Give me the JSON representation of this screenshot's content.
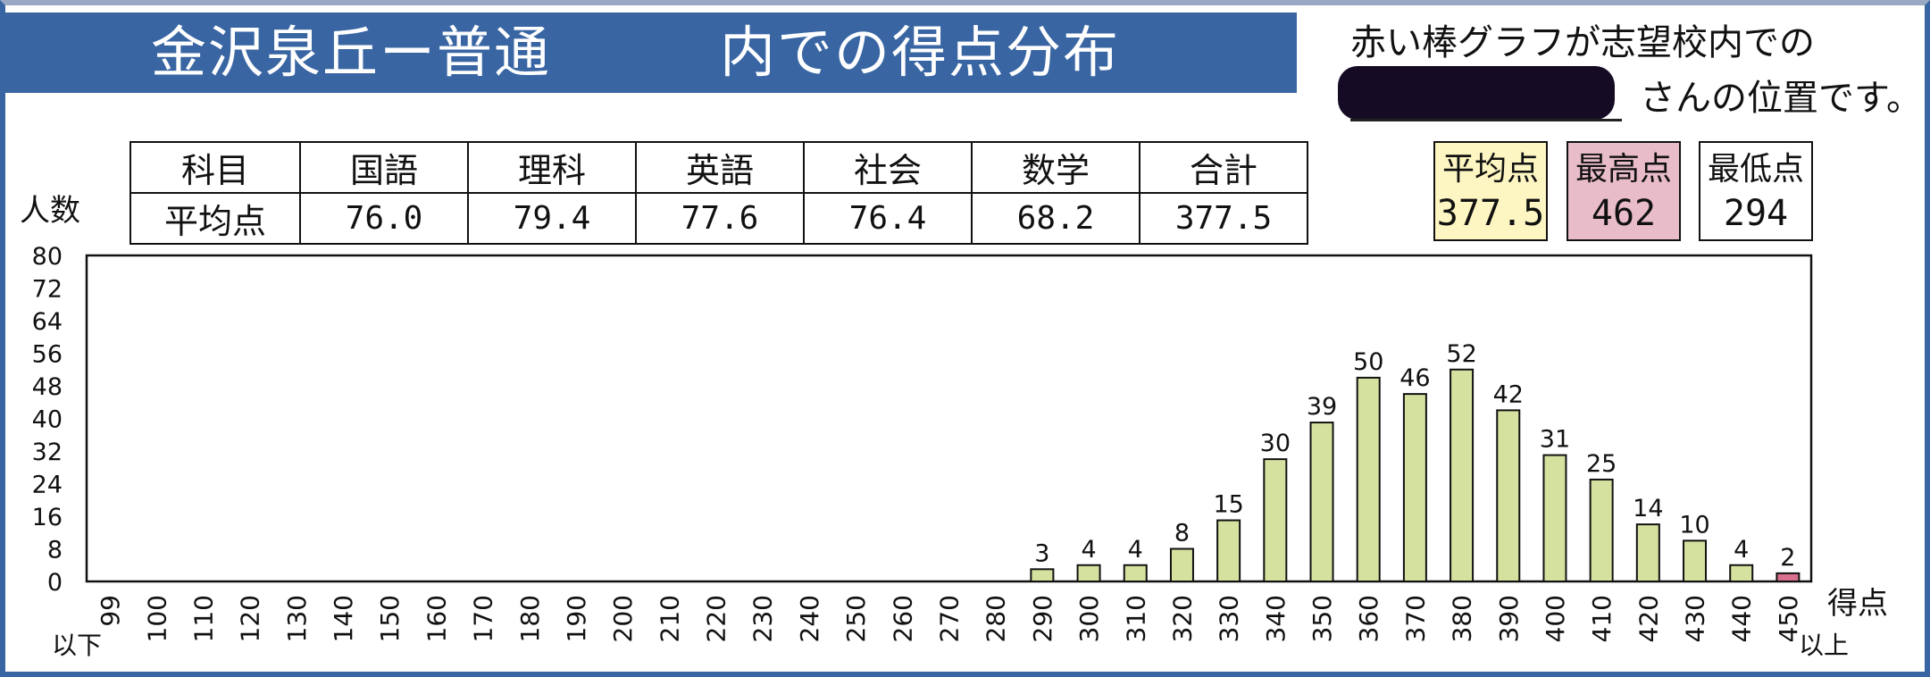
{
  "title": {
    "left": "金沢泉丘ー普通",
    "right": "内での得点分布"
  },
  "note": {
    "line1": "赤い棒グラフが志望校内での",
    "line2": "さんの位置です。"
  },
  "score_table": {
    "header": [
      "科目",
      "国語",
      "理科",
      "英語",
      "社会",
      "数学",
      "合計"
    ],
    "row": [
      "平均点",
      "76.0",
      "79.4",
      "77.6",
      "76.4",
      "68.2",
      "377.5"
    ]
  },
  "stats": {
    "average_label": "平均点",
    "average_value": "377.5",
    "max_label": "最高点",
    "max_value": "462",
    "min_label": "最低点",
    "min_value": "294"
  },
  "colors": {
    "frame": "#3966a3",
    "bar": "#d5e29f",
    "highlight_bar": "#d8708e",
    "average_box": "#fdf6c2",
    "max_box": "#e8bcc9"
  },
  "chart_data": {
    "type": "bar",
    "ylabel": "人数",
    "xlabel": "得点",
    "x_start_note": "以下",
    "x_end_note": "以上",
    "ylim": [
      0,
      80
    ],
    "yticks": [
      0,
      8,
      16,
      24,
      32,
      40,
      48,
      56,
      64,
      72,
      80
    ],
    "categories": [
      "99",
      "100",
      "110",
      "120",
      "130",
      "140",
      "150",
      "160",
      "170",
      "180",
      "190",
      "200",
      "210",
      "220",
      "230",
      "240",
      "250",
      "260",
      "270",
      "280",
      "290",
      "300",
      "310",
      "320",
      "330",
      "340",
      "350",
      "360",
      "370",
      "380",
      "390",
      "400",
      "410",
      "420",
      "430",
      "440",
      "450"
    ],
    "values": [
      0,
      0,
      0,
      0,
      0,
      0,
      0,
      0,
      0,
      0,
      0,
      0,
      0,
      0,
      0,
      0,
      0,
      0,
      0,
      0,
      3,
      4,
      4,
      8,
      15,
      30,
      39,
      50,
      46,
      52,
      42,
      31,
      25,
      14,
      10,
      4,
      2
    ],
    "highlight_category": "450",
    "grid": false
  }
}
